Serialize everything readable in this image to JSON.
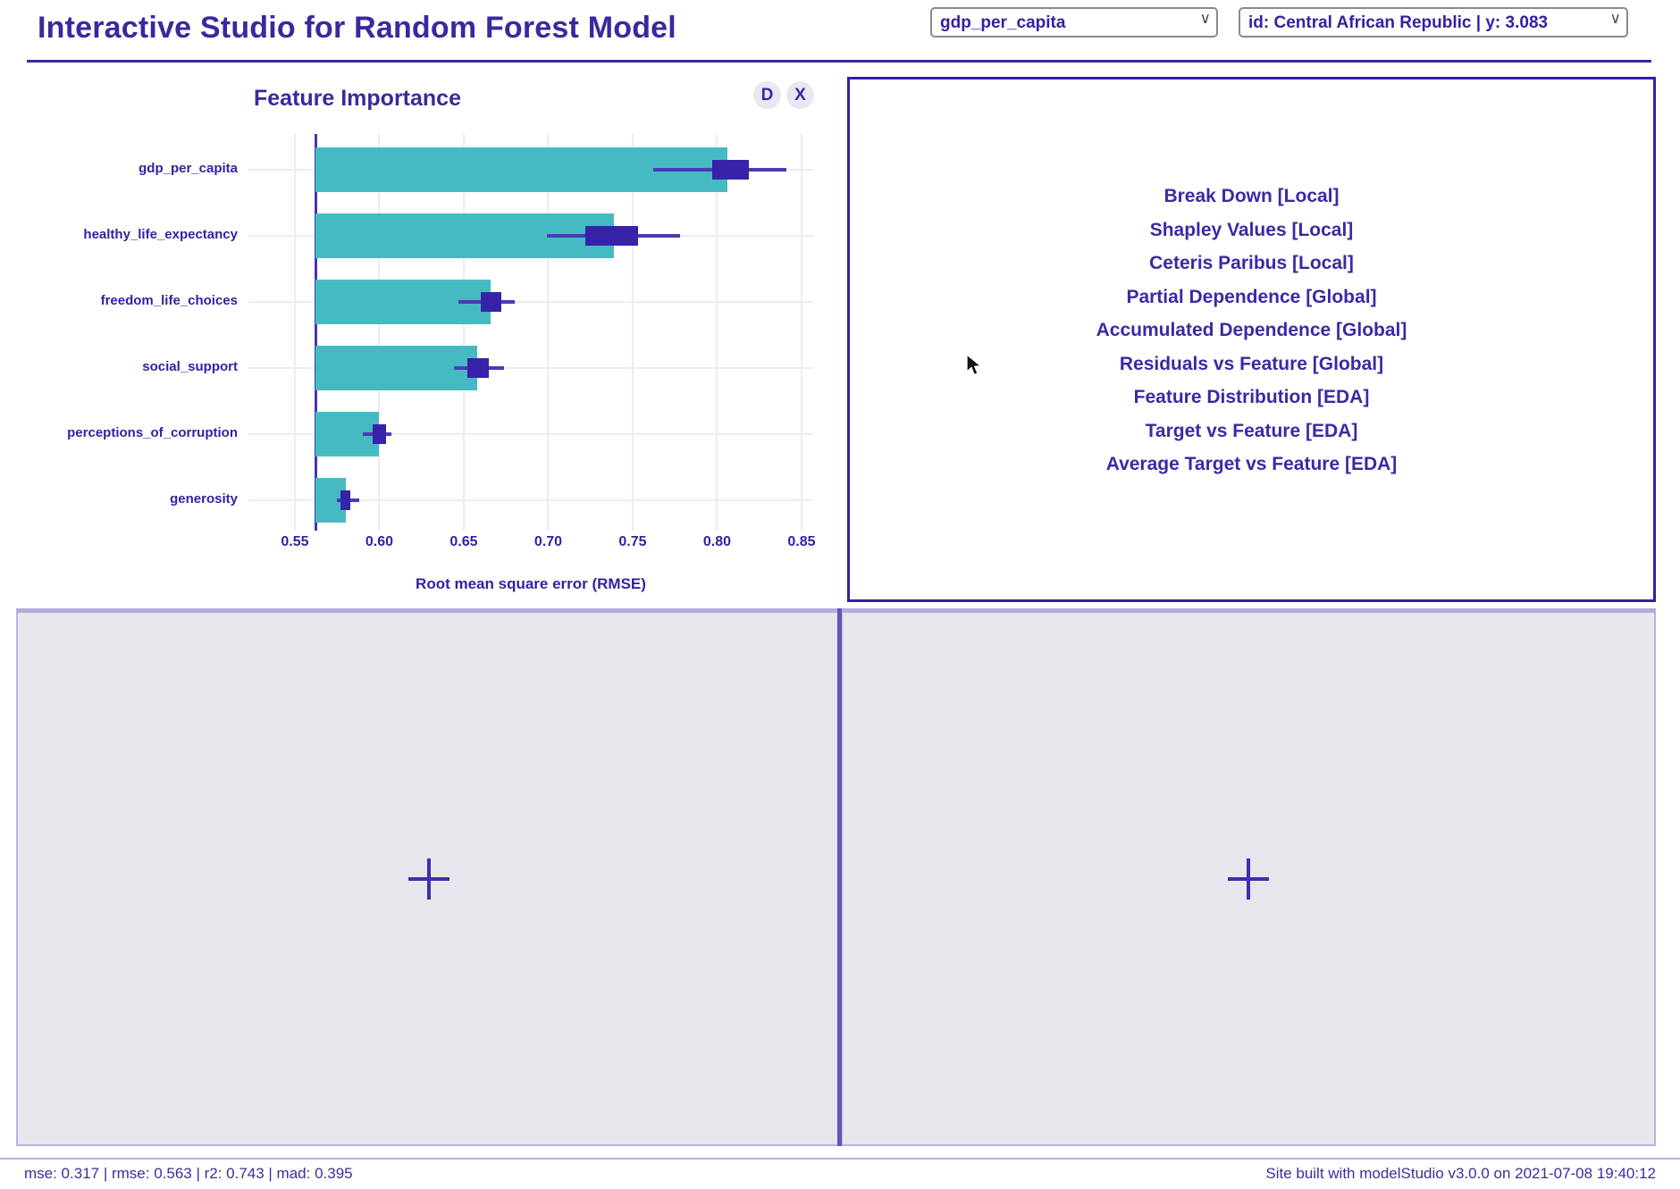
{
  "header": {
    "title": "Interactive Studio for Random Forest Model",
    "feature_select": {
      "value": "gdp_per_capita"
    },
    "observation_select": {
      "value": "id: Central African Republic | y: 3.083"
    }
  },
  "feature_importance": {
    "d_button": "D",
    "x_button": "X"
  },
  "chart_data": {
    "type": "bar",
    "title": "Feature Importance",
    "xlabel": "Root mean square error (RMSE)",
    "legend_position": "none",
    "grid": true,
    "baseline": 0.562,
    "x_ticks": [
      0.55,
      0.6,
      0.65,
      0.7,
      0.75,
      0.8,
      0.85
    ],
    "xlim": [
      0.5225,
      0.8565
    ],
    "categories": [
      "gdp_per_capita",
      "healthy_life_expectancy",
      "freedom_life_choices",
      "social_support",
      "perceptions_of_corruption",
      "generosity"
    ],
    "values": [
      0.806,
      0.739,
      0.666,
      0.658,
      0.6,
      0.58
    ],
    "boxplots": [
      {
        "low": 0.762,
        "q1": 0.797,
        "q3": 0.819,
        "high": 0.841
      },
      {
        "low": 0.699,
        "q1": 0.722,
        "q3": 0.753,
        "high": 0.778
      },
      {
        "low": 0.647,
        "q1": 0.66,
        "q3": 0.672,
        "high": 0.68
      },
      {
        "low": 0.644,
        "q1": 0.652,
        "q3": 0.665,
        "high": 0.674
      },
      {
        "low": 0.59,
        "q1": 0.596,
        "q3": 0.604,
        "high": 0.607
      },
      {
        "low": 0.575,
        "q1": 0.577,
        "q3": 0.583,
        "high": 0.588
      }
    ],
    "colors": {
      "bar": "#46bac2",
      "box": "#3623a9",
      "whisker": "#4c39b8",
      "baseline": "#4836ad",
      "grid": "#ededf1",
      "text": "#371ea3"
    }
  },
  "menu": {
    "items": [
      "Break Down [Local]",
      "Shapley Values [Local]",
      "Ceteris Paribus [Local]",
      "Partial Dependence [Global]",
      "Accumulated Dependence [Global]",
      "Residuals vs Feature [Global]",
      "Feature Distribution [EDA]",
      "Target vs Feature [EDA]",
      "Average Target vs Feature [EDA]"
    ]
  },
  "placeholders": {
    "plus_icon": "plus-icon"
  },
  "footer": {
    "left": "mse: 0.317 | rmse: 0.563 | r2: 0.743 | mad: 0.395",
    "right": "Site built with modelStudio v3.0.0 on 2021-07-08 19:40:12"
  }
}
